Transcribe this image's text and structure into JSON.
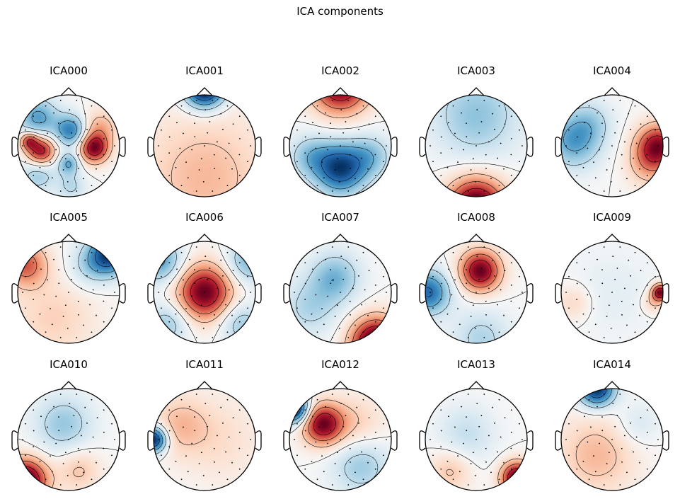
{
  "title": "ICA components",
  "chart_data": {
    "type": "heatmap",
    "title": "ICA components",
    "colormap": "RdBu_r",
    "colors": {
      "negative": "#053061",
      "positive": "#67001f",
      "neutral": "#f7f7f7"
    },
    "layout": {
      "rows": 3,
      "cols": 5
    },
    "components": [
      {
        "name": "ICA000",
        "blobs": [
          {
            "x": -0.78,
            "y": 0.1,
            "amp": 0.7,
            "s": 0.12
          },
          {
            "x": -0.55,
            "y": -0.1,
            "amp": 1.0,
            "s": 0.2
          },
          {
            "x": 0.5,
            "y": -0.05,
            "amp": 1.0,
            "s": 0.2
          },
          {
            "x": 0.6,
            "y": 0.35,
            "amp": 0.4,
            "s": 0.25
          },
          {
            "x": -0.6,
            "y": 0.55,
            "amp": -0.6,
            "s": 0.28
          },
          {
            "x": 0.05,
            "y": 0.3,
            "amp": -0.75,
            "s": 0.22
          },
          {
            "x": 0.0,
            "y": -0.35,
            "amp": -0.55,
            "s": 0.15
          },
          {
            "x": -0.6,
            "y": -0.55,
            "amp": -0.4,
            "s": 0.25
          },
          {
            "x": 0.05,
            "y": -0.8,
            "amp": -0.3,
            "s": 0.2
          }
        ]
      },
      {
        "name": "ICA001",
        "blobs": [
          {
            "x": 0.0,
            "y": 1.15,
            "amp": -1.1,
            "s": 0.28
          },
          {
            "x": 0.0,
            "y": -0.6,
            "amp": 0.28,
            "s": 0.9
          }
        ]
      },
      {
        "name": "ICA002",
        "blobs": [
          {
            "x": 0.0,
            "y": 1.2,
            "amp": 1.1,
            "s": 0.4
          },
          {
            "x": 0.0,
            "y": -0.45,
            "amp": -1.0,
            "s": 0.35
          },
          {
            "x": 0.6,
            "y": -0.2,
            "amp": -0.4,
            "s": 0.3
          },
          {
            "x": -0.6,
            "y": -0.2,
            "amp": -0.4,
            "s": 0.3
          }
        ]
      },
      {
        "name": "ICA003",
        "blobs": [
          {
            "x": 0.0,
            "y": -1.2,
            "amp": 1.3,
            "s": 0.4
          },
          {
            "x": 0.0,
            "y": 0.6,
            "amp": -0.45,
            "s": 0.6
          }
        ]
      },
      {
        "name": "ICA004",
        "blobs": [
          {
            "x": 0.9,
            "y": 0.0,
            "amp": 1.2,
            "s": 0.3
          },
          {
            "x": 0.7,
            "y": -0.4,
            "amp": 0.4,
            "s": 0.3
          },
          {
            "x": -0.75,
            "y": 0.1,
            "amp": -0.75,
            "s": 0.38
          },
          {
            "x": -0.4,
            "y": 0.5,
            "amp": -0.3,
            "s": 0.3
          }
        ]
      },
      {
        "name": "ICA005",
        "blobs": [
          {
            "x": 0.8,
            "y": 0.75,
            "amp": -1.0,
            "s": 0.28
          },
          {
            "x": 0.4,
            "y": 0.5,
            "amp": -0.3,
            "s": 0.3
          },
          {
            "x": -0.85,
            "y": 0.55,
            "amp": 0.65,
            "s": 0.3
          },
          {
            "x": -0.3,
            "y": -0.5,
            "amp": 0.25,
            "s": 0.6
          }
        ]
      },
      {
        "name": "ICA006",
        "blobs": [
          {
            "x": 0.0,
            "y": 0.0,
            "amp": 1.1,
            "s": 0.38
          },
          {
            "x": -0.85,
            "y": 0.6,
            "amp": -0.6,
            "s": 0.3
          },
          {
            "x": 0.85,
            "y": 0.6,
            "amp": -0.5,
            "s": 0.3
          },
          {
            "x": -0.7,
            "y": -0.6,
            "amp": -0.4,
            "s": 0.3
          },
          {
            "x": 0.7,
            "y": -0.6,
            "amp": -0.4,
            "s": 0.3
          }
        ]
      },
      {
        "name": "ICA007",
        "blobs": [
          {
            "x": 0.7,
            "y": -1.0,
            "amp": 1.2,
            "s": 0.35
          },
          {
            "x": -0.1,
            "y": 0.3,
            "amp": -0.45,
            "s": 0.35
          },
          {
            "x": -0.6,
            "y": -0.3,
            "amp": -0.3,
            "s": 0.4
          }
        ]
      },
      {
        "name": "ICA008",
        "blobs": [
          {
            "x": 0.08,
            "y": 0.42,
            "amp": 1.15,
            "s": 0.28
          },
          {
            "x": -0.95,
            "y": 0.0,
            "amp": -0.9,
            "s": 0.3
          },
          {
            "x": 0.1,
            "y": -0.9,
            "amp": -0.35,
            "s": 0.4
          }
        ]
      },
      {
        "name": "ICA009",
        "blobs": [
          {
            "x": 0.95,
            "y": 0.0,
            "amp": 1.1,
            "s": 0.12
          },
          {
            "x": 0.8,
            "y": -0.2,
            "amp": 0.3,
            "s": 0.15
          },
          {
            "x": -0.75,
            "y": -0.2,
            "amp": 0.25,
            "s": 0.25
          },
          {
            "x": 0.0,
            "y": 0.0,
            "amp": -0.12,
            "s": 0.6
          }
        ]
      },
      {
        "name": "ICA010",
        "blobs": [
          {
            "x": -0.85,
            "y": -0.8,
            "amp": 1.2,
            "s": 0.3
          },
          {
            "x": -0.1,
            "y": 0.3,
            "amp": -0.4,
            "s": 0.4
          },
          {
            "x": 0.2,
            "y": -0.6,
            "amp": 0.3,
            "s": 0.3
          }
        ]
      },
      {
        "name": "ICA011",
        "blobs": [
          {
            "x": -1.0,
            "y": 0.0,
            "amp": -1.0,
            "s": 0.18
          },
          {
            "x": -0.5,
            "y": 0.3,
            "amp": 0.25,
            "s": 0.4
          },
          {
            "x": 0.3,
            "y": 0.0,
            "amp": 0.15,
            "s": 0.6
          }
        ]
      },
      {
        "name": "ICA012",
        "blobs": [
          {
            "x": -0.35,
            "y": 0.3,
            "amp": 0.75,
            "s": 0.28
          },
          {
            "x": -0.9,
            "y": 0.6,
            "amp": -0.9,
            "s": 0.2
          },
          {
            "x": 0.4,
            "y": -0.5,
            "amp": -0.3,
            "s": 0.4
          },
          {
            "x": 0.3,
            "y": 0.3,
            "amp": 0.2,
            "s": 0.4
          }
        ]
      },
      {
        "name": "ICA013",
        "blobs": [
          {
            "x": 0.8,
            "y": -0.75,
            "amp": 1.1,
            "s": 0.22
          },
          {
            "x": -0.2,
            "y": 0.1,
            "amp": -0.25,
            "s": 0.4
          },
          {
            "x": -0.5,
            "y": -0.6,
            "amp": 0.3,
            "s": 0.3
          }
        ]
      },
      {
        "name": "ICA014",
        "blobs": [
          {
            "x": -0.3,
            "y": 1.0,
            "amp": -1.1,
            "s": 0.25
          },
          {
            "x": -0.3,
            "y": -0.3,
            "amp": 0.35,
            "s": 0.55
          },
          {
            "x": 0.5,
            "y": 0.3,
            "amp": -0.2,
            "s": 0.3
          }
        ]
      }
    ]
  }
}
